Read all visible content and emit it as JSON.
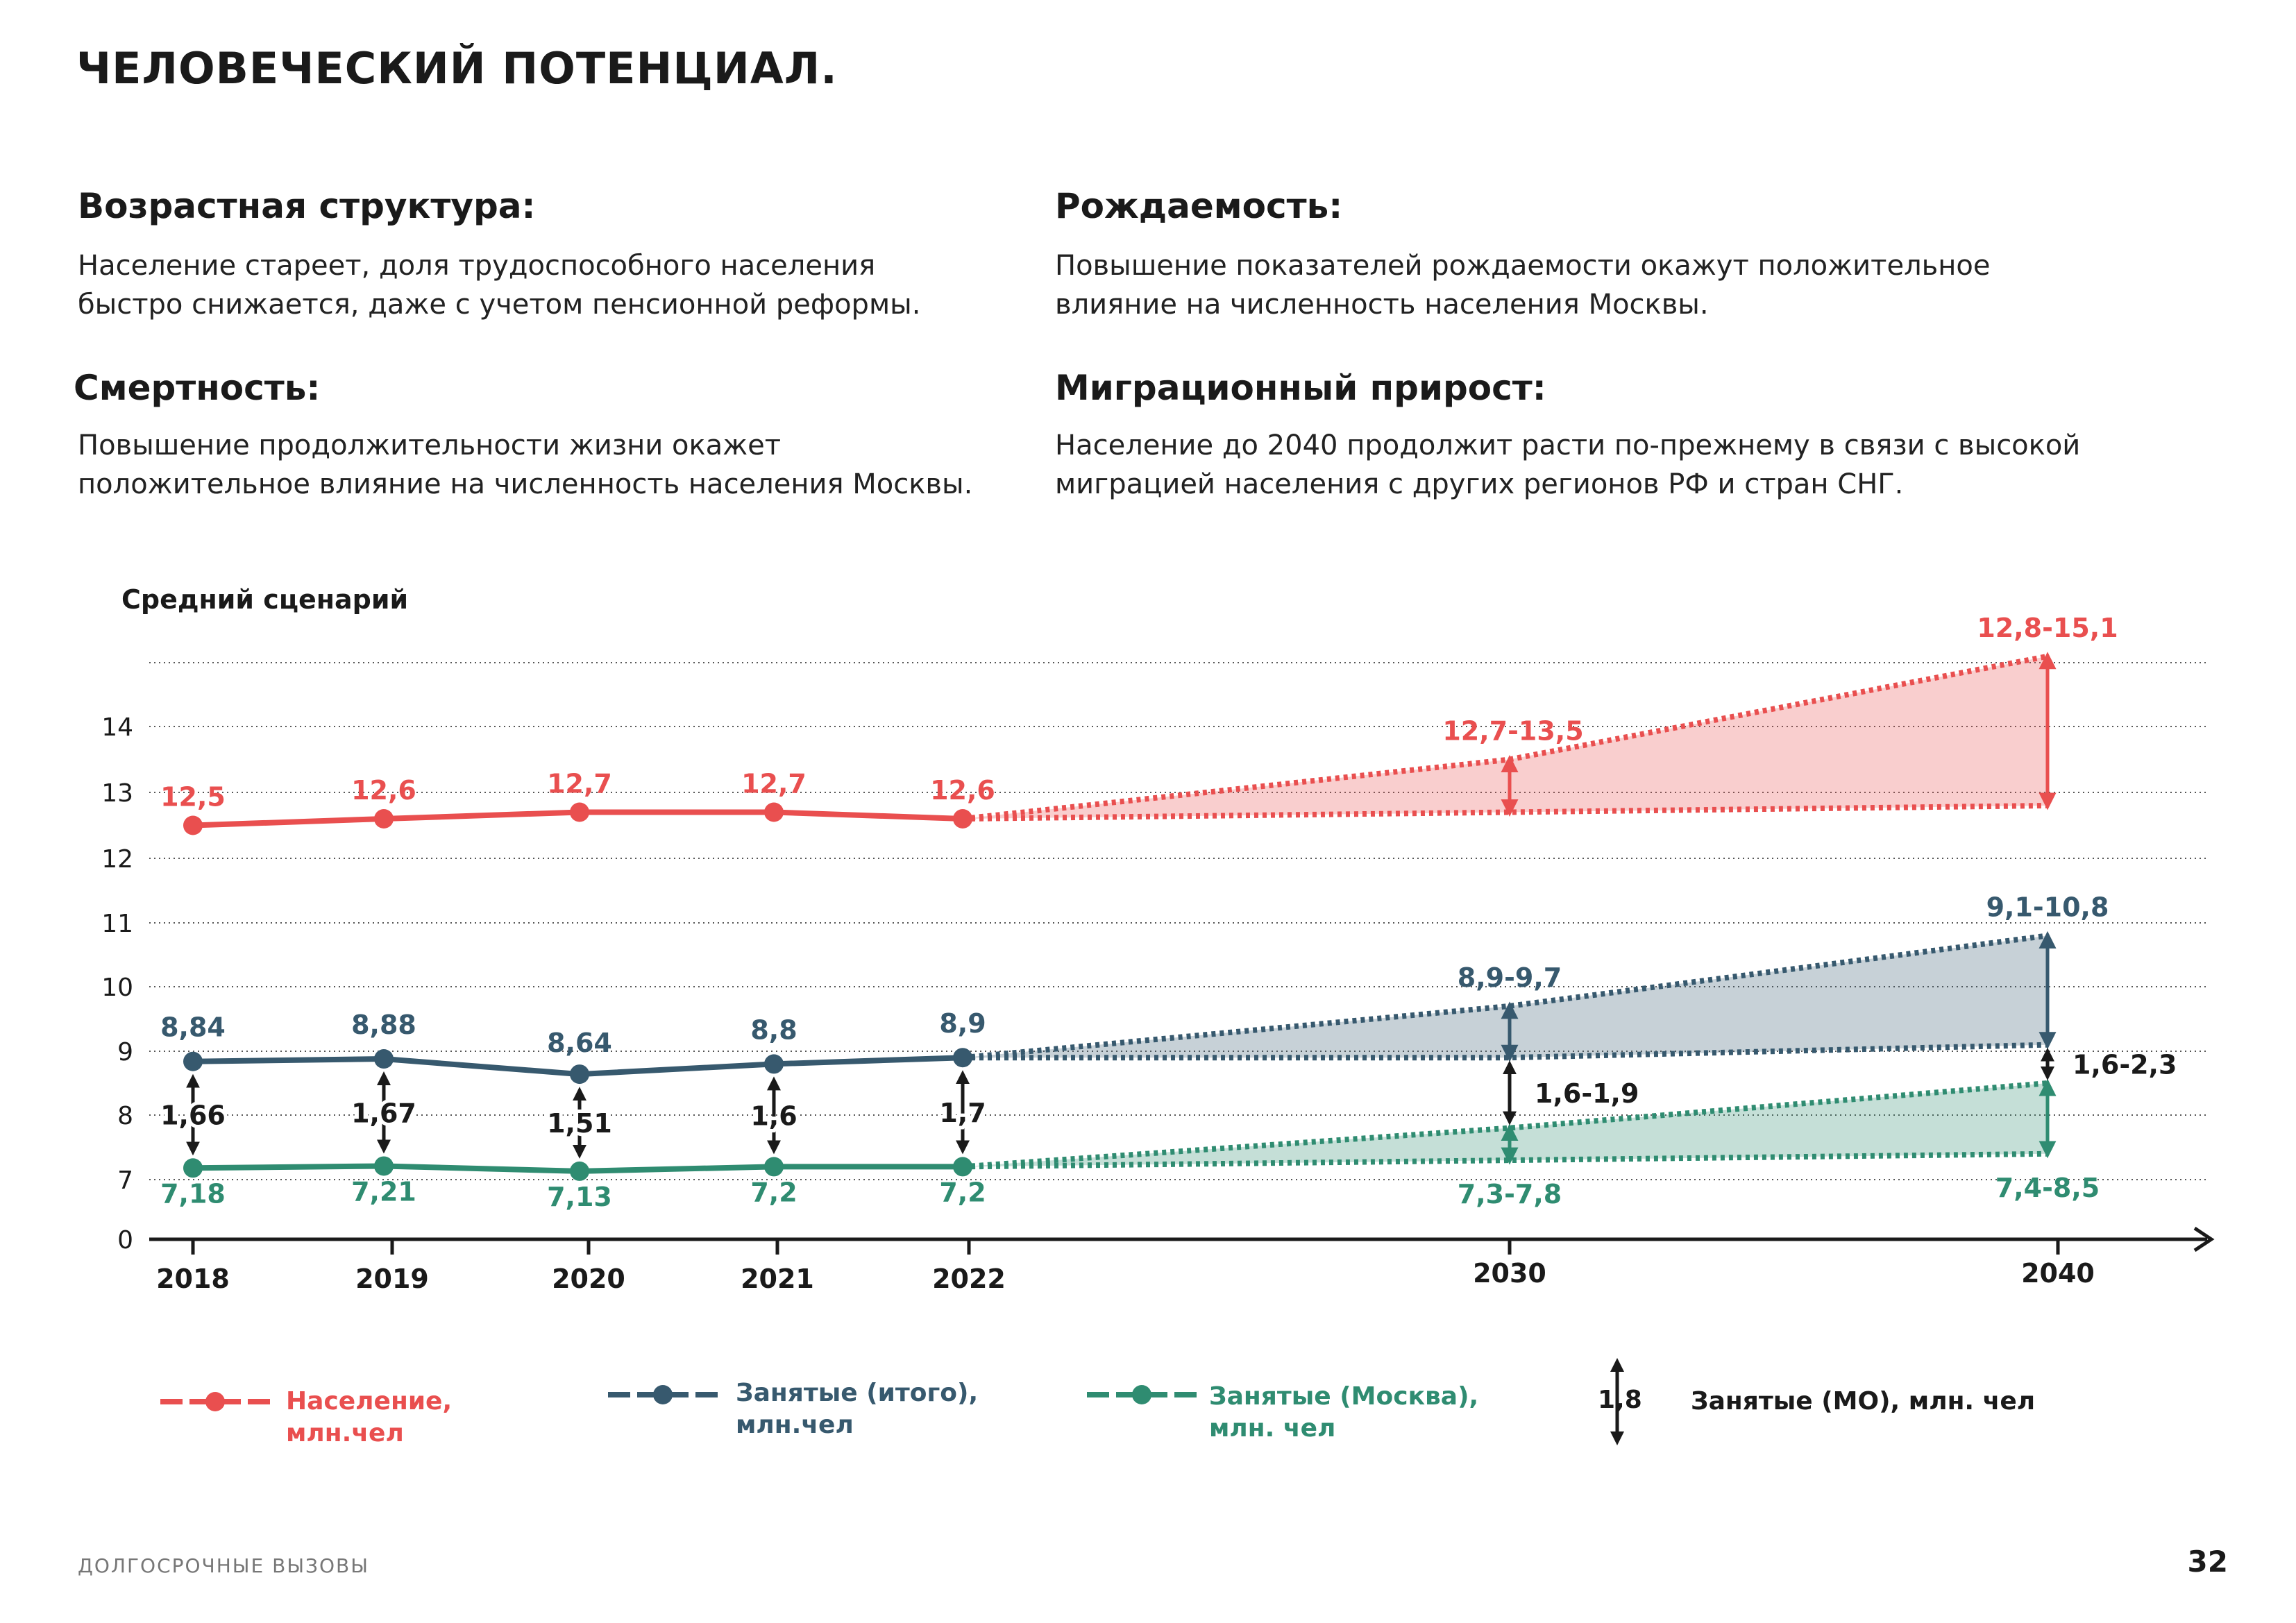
{
  "page": {
    "title": "ЧЕЛОВЕЧЕСКИЙ ПОТЕНЦИАЛ.",
    "footer": "ДОЛГОСРОЧНЫЕ ВЫЗОВЫ",
    "page_number": "32"
  },
  "sections": {
    "age": {
      "heading": "Возрастная структура:",
      "line1": "Население стареет, доля трудоспособного населения",
      "line2": "быстро снижается, даже с учетом пенсионной реформы."
    },
    "birth": {
      "heading": "Рождаемость:",
      "line1": "Повышение показателей рождаемости окажут положительное",
      "line2": "влияние на численность населения Москвы."
    },
    "mortality": {
      "heading": "Смертность:",
      "line1": "Повышение продолжительности жизни окажет",
      "line2": "положительное влияние на численность населения Москвы."
    },
    "migration": {
      "heading": "Миграционный прирост:",
      "line1": "Население до 2040 продолжит расти по-прежнему в связи с высокой",
      "line2": "миграцией населения с других регионов РФ и стран СНГ."
    }
  },
  "chart_data": {
    "type": "line",
    "title": "Средний сценарий",
    "x_ticks": [
      "2018",
      "2019",
      "2020",
      "2021",
      "2022",
      "2030",
      "2040"
    ],
    "y_ticks": [
      "0",
      "7",
      "8",
      "9",
      "10",
      "11",
      "12",
      "13",
      "14"
    ],
    "ylim": [
      0,
      15
    ],
    "grid": true,
    "series": [
      {
        "name": "Население, млн.чел",
        "color": "#e94f4f",
        "x": [
          "2018",
          "2019",
          "2020",
          "2021",
          "2022"
        ],
        "values": [
          12.5,
          12.6,
          12.7,
          12.7,
          12.6
        ],
        "labels": [
          "12,5",
          "12,6",
          "12,7",
          "12,7",
          "12,6"
        ],
        "forecast": [
          {
            "x": "2030",
            "low": 12.7,
            "high": 13.5,
            "label": "12,7-13,5"
          },
          {
            "x": "2040",
            "low": 12.8,
            "high": 15.1,
            "label": "12,8-15,1"
          }
        ]
      },
      {
        "name": "Занятые (итого), млн.чел",
        "color": "#37596e",
        "x": [
          "2018",
          "2019",
          "2020",
          "2021",
          "2022"
        ],
        "values": [
          8.84,
          8.88,
          8.64,
          8.8,
          8.9
        ],
        "labels": [
          "8,84",
          "8,88",
          "8,64",
          "8,8",
          "8,9"
        ],
        "forecast": [
          {
            "x": "2030",
            "low": 8.9,
            "high": 9.7,
            "label": "8,9-9,7"
          },
          {
            "x": "2040",
            "low": 9.1,
            "high": 10.8,
            "label": "9,1-10,8"
          }
        ]
      },
      {
        "name": "Занятые (Москва), млн. чел",
        "color": "#2f8c71",
        "x": [
          "2018",
          "2019",
          "2020",
          "2021",
          "2022"
        ],
        "values": [
          7.18,
          7.21,
          7.13,
          7.2,
          7.2
        ],
        "labels": [
          "7,18",
          "7,21",
          "7,13",
          "7,2",
          "7,2"
        ],
        "forecast": [
          {
            "x": "2030",
            "low": 7.3,
            "high": 7.8,
            "label": "7,3-7,8"
          },
          {
            "x": "2040",
            "low": 7.4,
            "high": 8.5,
            "label": "7,4-8,5"
          }
        ]
      },
      {
        "name": "Занятые (МО), млн. чел",
        "color": "#1a1a1a",
        "x": [
          "2018",
          "2019",
          "2020",
          "2021",
          "2022",
          "2030",
          "2040"
        ],
        "labels": [
          "1,66",
          "1,67",
          "1,51",
          "1,6",
          "1,7",
          "1,6-1,9",
          "1,6-2,3"
        ]
      }
    ]
  },
  "legend": {
    "population": {
      "line1": "Население,",
      "line2": "млн.чел"
    },
    "employed_total": {
      "line1": "Занятые (итого),",
      "line2": "млн.чел"
    },
    "employed_moscow": {
      "line1": "Занятые (Москва),",
      "line2": "млн. чел"
    },
    "employed_mo": {
      "sample": "1,8",
      "text": "Занятые (МО), млн. чел"
    }
  }
}
